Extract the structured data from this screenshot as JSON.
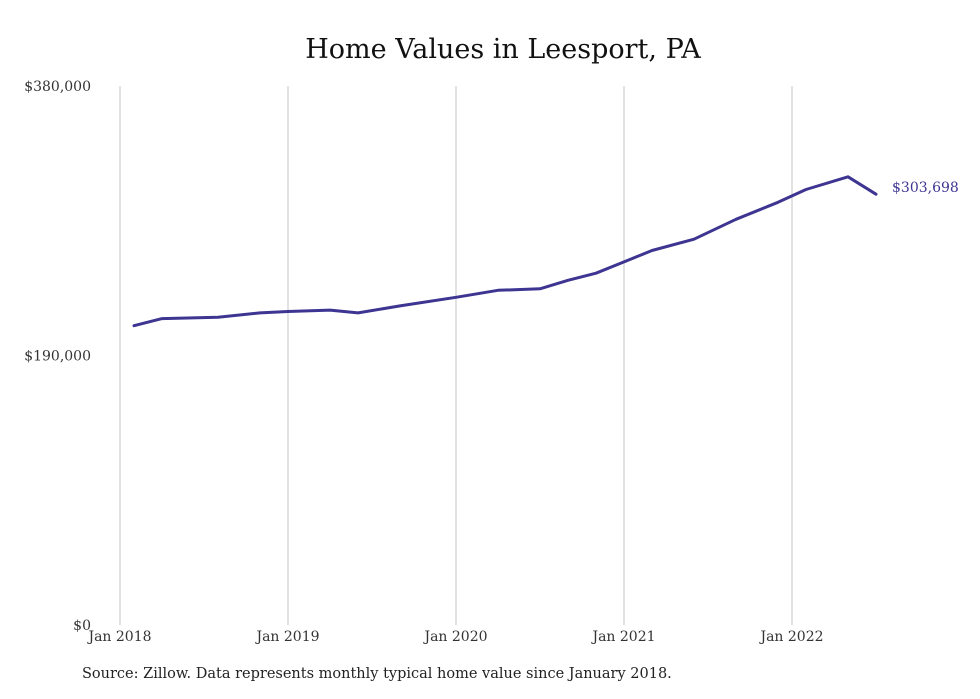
{
  "chart_data": {
    "type": "line",
    "title": "Home Values in Leesport, PA",
    "xlabel": "",
    "ylabel": "",
    "ylim": [
      0,
      380000
    ],
    "y_ticks": [
      {
        "value": 0,
        "label": "$0"
      },
      {
        "value": 190000,
        "label": "$190,000"
      },
      {
        "value": 380000,
        "label": "$380,000"
      }
    ],
    "x_ticks": [
      {
        "value": "2018-01",
        "label": "Jan 2018"
      },
      {
        "value": "2019-01",
        "label": "Jan 2019"
      },
      {
        "value": "2020-01",
        "label": "Jan 2020"
      },
      {
        "value": "2021-01",
        "label": "Jan 2021"
      },
      {
        "value": "2022-01",
        "label": "Jan 2022"
      }
    ],
    "xlim": [
      "2018-01",
      "2022-08"
    ],
    "grid": "vertical",
    "series": [
      {
        "x": [
          "2018-02",
          "2018-04",
          "2018-08",
          "2018-11",
          "2019-01",
          "2019-04",
          "2019-06",
          "2019-09",
          "2020-01",
          "2020-04",
          "2020-07",
          "2020-09",
          "2020-11",
          "2021-01",
          "2021-03",
          "2021-06",
          "2021-09",
          "2021-12",
          "2022-02",
          "2022-05",
          "2022-07"
        ],
        "y": [
          211000,
          216000,
          217000,
          220000,
          221000,
          222000,
          220000,
          225000,
          231000,
          236000,
          237000,
          243000,
          248000,
          256000,
          264000,
          272000,
          286000,
          298000,
          307000,
          316000,
          303698
        ],
        "color": "#3d3591"
      }
    ],
    "end_label": "$303,698",
    "source": "Source: Zillow. Data represents monthly typical home value since January 2018."
  }
}
